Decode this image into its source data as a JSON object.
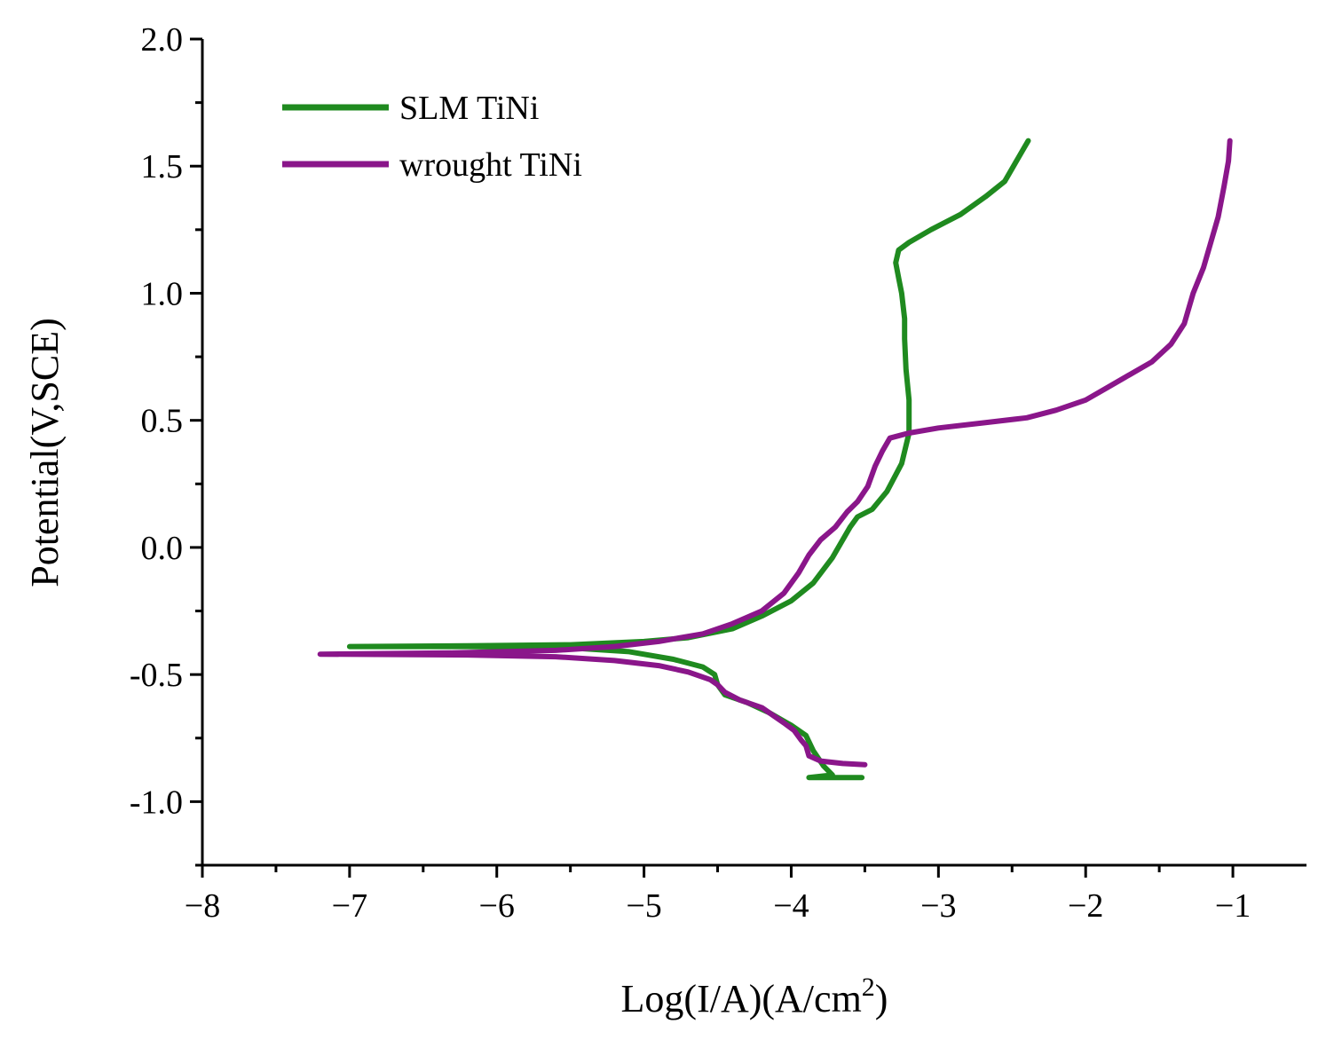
{
  "chart_data": {
    "type": "line",
    "title": "",
    "xlabel_main": "Log(I/A)(A/cm",
    "xlabel_sup": "2",
    "xlabel_end": ")",
    "ylabel": "Potential(V,SCE)",
    "xlim": [
      -8,
      -0.5
    ],
    "ylim": [
      -1.25,
      2.0
    ],
    "x_ticks": [
      -8,
      -7,
      -6,
      -5,
      -4,
      -3,
      -2,
      -1
    ],
    "x_tick_labels": [
      "−8",
      "−7",
      "−6",
      "−5",
      "−4",
      "−3",
      "−2",
      "−1"
    ],
    "y_ticks": [
      -1.0,
      -0.5,
      0.0,
      0.5,
      1.0,
      1.5,
      2.0
    ],
    "y_tick_labels": [
      "-1.0",
      "-0.5",
      "0.0",
      "0.5",
      "1.0",
      "1.5",
      "2.0"
    ],
    "legend_position": "top-left",
    "series": [
      {
        "name": "SLM TiNi",
        "color": "#1f8a1f",
        "points": [
          [
            -3.52,
            -0.905
          ],
          [
            -3.88,
            -0.905
          ],
          [
            -3.72,
            -0.895
          ],
          [
            -3.78,
            -0.86
          ],
          [
            -3.85,
            -0.8
          ],
          [
            -3.9,
            -0.74
          ],
          [
            -4.0,
            -0.7
          ],
          [
            -4.15,
            -0.65
          ],
          [
            -4.3,
            -0.61
          ],
          [
            -4.45,
            -0.58
          ],
          [
            -4.5,
            -0.54
          ],
          [
            -4.52,
            -0.5
          ],
          [
            -4.6,
            -0.47
          ],
          [
            -4.8,
            -0.44
          ],
          [
            -5.1,
            -0.41
          ],
          [
            -5.5,
            -0.395
          ],
          [
            -6.2,
            -0.39
          ],
          [
            -7.0,
            -0.39
          ],
          [
            -6.2,
            -0.387
          ],
          [
            -5.5,
            -0.383
          ],
          [
            -5.0,
            -0.37
          ],
          [
            -4.7,
            -0.355
          ],
          [
            -4.4,
            -0.32
          ],
          [
            -4.2,
            -0.27
          ],
          [
            -4.0,
            -0.21
          ],
          [
            -3.85,
            -0.14
          ],
          [
            -3.72,
            -0.04
          ],
          [
            -3.6,
            0.08
          ],
          [
            -3.55,
            0.12
          ],
          [
            -3.45,
            0.15
          ],
          [
            -3.35,
            0.22
          ],
          [
            -3.25,
            0.33
          ],
          [
            -3.2,
            0.45
          ],
          [
            -3.2,
            0.58
          ],
          [
            -3.22,
            0.7
          ],
          [
            -3.23,
            0.82
          ],
          [
            -3.23,
            0.9
          ],
          [
            -3.25,
            1.0
          ],
          [
            -3.27,
            1.06
          ],
          [
            -3.29,
            1.12
          ],
          [
            -3.27,
            1.17
          ],
          [
            -3.2,
            1.2
          ],
          [
            -3.05,
            1.25
          ],
          [
            -2.85,
            1.31
          ],
          [
            -2.68,
            1.38
          ],
          [
            -2.55,
            1.44
          ],
          [
            -2.47,
            1.52
          ],
          [
            -2.41,
            1.58
          ],
          [
            -2.39,
            1.6
          ]
        ]
      },
      {
        "name": "wrought TiNi",
        "color": "#8a168a",
        "points": [
          [
            -3.5,
            -0.855
          ],
          [
            -3.65,
            -0.85
          ],
          [
            -3.8,
            -0.84
          ],
          [
            -3.88,
            -0.82
          ],
          [
            -3.9,
            -0.78
          ],
          [
            -3.93,
            -0.76
          ],
          [
            -3.98,
            -0.72
          ],
          [
            -4.05,
            -0.69
          ],
          [
            -4.1,
            -0.67
          ],
          [
            -4.2,
            -0.63
          ],
          [
            -4.35,
            -0.6
          ],
          [
            -4.45,
            -0.57
          ],
          [
            -4.5,
            -0.54
          ],
          [
            -4.55,
            -0.52
          ],
          [
            -4.7,
            -0.49
          ],
          [
            -4.9,
            -0.465
          ],
          [
            -5.2,
            -0.445
          ],
          [
            -5.6,
            -0.43
          ],
          [
            -6.2,
            -0.423
          ],
          [
            -7.2,
            -0.42
          ],
          [
            -6.3,
            -0.415
          ],
          [
            -5.6,
            -0.405
          ],
          [
            -5.2,
            -0.39
          ],
          [
            -4.9,
            -0.37
          ],
          [
            -4.6,
            -0.34
          ],
          [
            -4.4,
            -0.3
          ],
          [
            -4.2,
            -0.25
          ],
          [
            -4.05,
            -0.18
          ],
          [
            -3.95,
            -0.1
          ],
          [
            -3.88,
            -0.03
          ],
          [
            -3.8,
            0.03
          ],
          [
            -3.7,
            0.08
          ],
          [
            -3.62,
            0.14
          ],
          [
            -3.55,
            0.18
          ],
          [
            -3.48,
            0.24
          ],
          [
            -3.43,
            0.32
          ],
          [
            -3.38,
            0.38
          ],
          [
            -3.33,
            0.43
          ],
          [
            -3.2,
            0.45
          ],
          [
            -3.0,
            0.47
          ],
          [
            -2.7,
            0.49
          ],
          [
            -2.4,
            0.51
          ],
          [
            -2.2,
            0.54
          ],
          [
            -2.0,
            0.58
          ],
          [
            -1.85,
            0.63
          ],
          [
            -1.7,
            0.68
          ],
          [
            -1.55,
            0.73
          ],
          [
            -1.42,
            0.8
          ],
          [
            -1.33,
            0.88
          ],
          [
            -1.27,
            1.0
          ],
          [
            -1.2,
            1.1
          ],
          [
            -1.15,
            1.2
          ],
          [
            -1.1,
            1.3
          ],
          [
            -1.06,
            1.42
          ],
          [
            -1.03,
            1.52
          ],
          [
            -1.02,
            1.6
          ]
        ]
      }
    ]
  }
}
